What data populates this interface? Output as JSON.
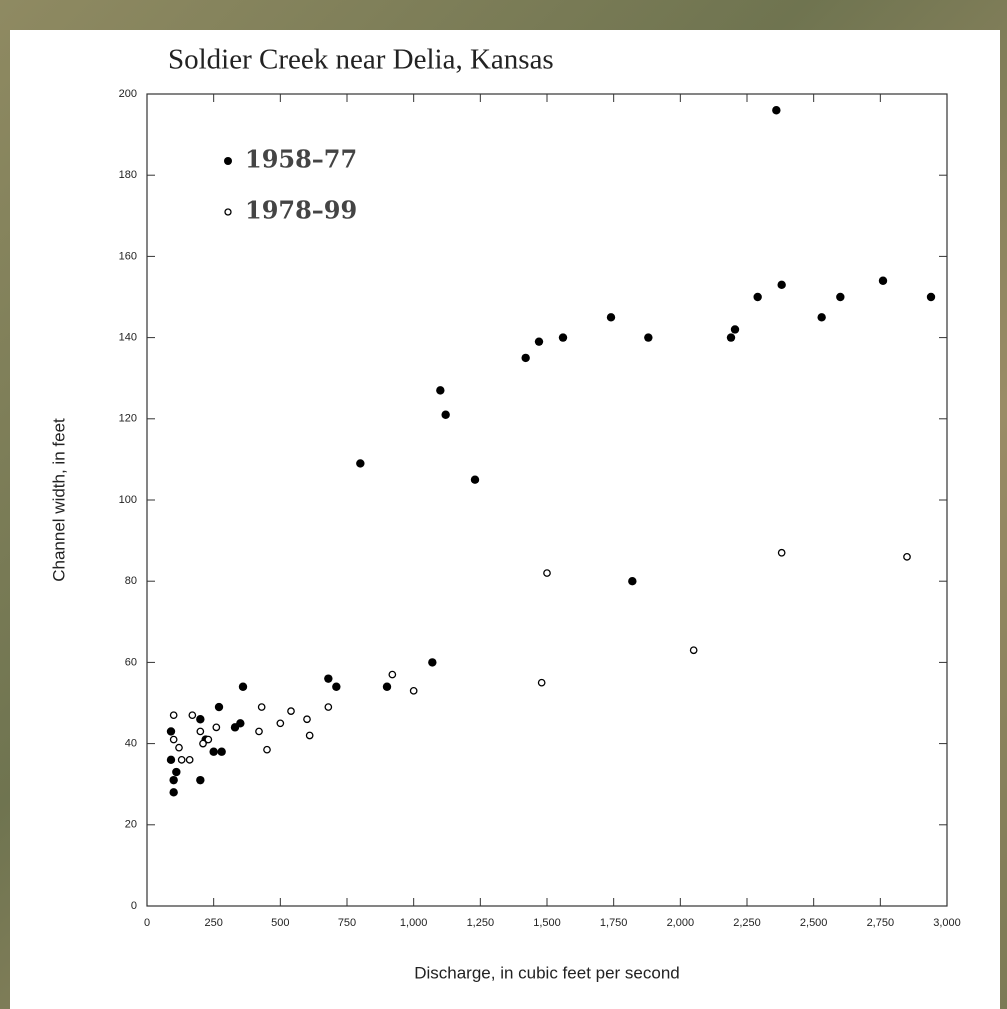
{
  "chart_data": {
    "type": "scatter",
    "title": "Soldier Creek near Delia, Kansas",
    "xlabel": "Discharge, in cubic feet per second",
    "ylabel": "Channel width, in feet",
    "xlim": [
      0,
      3000
    ],
    "ylim": [
      0,
      200
    ],
    "xticks": [
      0,
      250,
      500,
      750,
      {
        "value": 1000,
        "label": "1,000"
      },
      {
        "value": 1250,
        "label": "1,250"
      },
      {
        "value": 1500,
        "label": "1,500"
      },
      {
        "value": 1750,
        "label": "1,750"
      },
      {
        "value": 2000,
        "label": "2,000"
      },
      {
        "value": 2250,
        "label": "2,250"
      },
      {
        "value": 2500,
        "label": "2,500"
      },
      {
        "value": 2750,
        "label": "2,750"
      },
      {
        "value": 3000,
        "label": "3,000"
      }
    ],
    "yticks": [
      0,
      20,
      40,
      60,
      80,
      100,
      120,
      140,
      160,
      180,
      200
    ],
    "legend": "upper left",
    "series": [
      {
        "name": "1958–77",
        "color": "#000000",
        "filled": true,
        "x": [
          2360,
          1420,
          1470,
          1560,
          1740,
          1880,
          2190,
          2205,
          2290,
          2380,
          2530,
          2600,
          2760,
          2940,
          1100,
          1120,
          1230,
          800,
          1820,
          1070,
          900,
          680,
          710,
          360,
          270,
          330,
          350,
          90,
          90,
          100,
          100,
          200,
          200,
          250,
          280,
          220,
          110
        ],
        "y": [
          196,
          135,
          139,
          140,
          145,
          140,
          140,
          142,
          150,
          153,
          145,
          150,
          154,
          150,
          127,
          121,
          105,
          109,
          80,
          60,
          54,
          56,
          54,
          54,
          49,
          44,
          45,
          43,
          36,
          31,
          28,
          31,
          46,
          38,
          38,
          41,
          33
        ]
      },
      {
        "name": "1978–99",
        "color": "#000000",
        "filled": false,
        "x": [
          2380,
          2850,
          1500,
          2050,
          1480,
          920,
          1000,
          680,
          540,
          600,
          500,
          610,
          430,
          420,
          450,
          100,
          170,
          200,
          260,
          230,
          120,
          130,
          160,
          210,
          100
        ],
        "y": [
          87,
          86,
          82,
          63,
          55,
          57,
          53,
          49,
          48,
          46,
          45,
          42,
          49,
          43,
          38.5,
          47,
          47,
          43,
          44,
          41,
          39,
          36,
          36,
          40,
          41
        ]
      }
    ]
  }
}
